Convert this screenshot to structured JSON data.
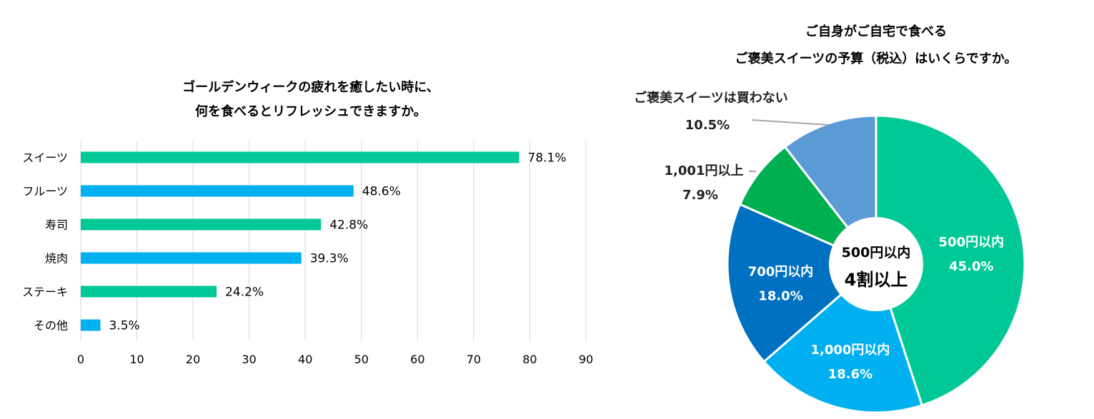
{
  "chart_data": [
    {
      "type": "bar",
      "orientation": "horizontal",
      "title_lines": [
        "ゴールデンウィークの疲れを癒したい時に、",
        "何を食べるとリフレッシュできますか。"
      ],
      "categories": [
        "スイーツ",
        "フルーツ",
        "寿司",
        "焼肉",
        "ステーキ",
        "その他"
      ],
      "values": [
        78.1,
        48.6,
        42.8,
        39.3,
        24.2,
        3.5
      ],
      "value_labels": [
        "78.1%",
        "48.6%",
        "42.8%",
        "39.3%",
        "24.2%",
        "3.5%"
      ],
      "bar_colors": [
        "#00c897",
        "#00b0f0",
        "#00c897",
        "#00b0f0",
        "#00c897",
        "#00b0f0"
      ],
      "xlim": [
        0,
        90
      ],
      "xticks": [
        "0",
        "10",
        "20",
        "30",
        "40",
        "50",
        "60",
        "70",
        "80",
        "90"
      ],
      "grid": true
    },
    {
      "type": "pie",
      "style": "donut",
      "title_lines": [
        "ご自身がご自宅で食べる",
        "ご褒美スイーツの予算（税込）はいくらですか。"
      ],
      "slices": [
        {
          "label": "500円以内",
          "value": 45.0,
          "value_label": "45.0%",
          "color": "#00c897"
        },
        {
          "label": "1,000円以内",
          "value": 18.6,
          "value_label": "18.6%",
          "color": "#00b0f0"
        },
        {
          "label": "700円以内",
          "value": 18.0,
          "value_label": "18.0%",
          "color": "#0070c0"
        },
        {
          "label": "1,001円以上",
          "value": 7.9,
          "value_label": "7.9%",
          "color": "#00b050"
        },
        {
          "label": "ご褒美スイーツは買わない",
          "value": 10.5,
          "value_label": "10.5%",
          "color": "#5b9bd5"
        }
      ],
      "center_text": [
        "500円以内",
        "4割以上"
      ]
    }
  ]
}
